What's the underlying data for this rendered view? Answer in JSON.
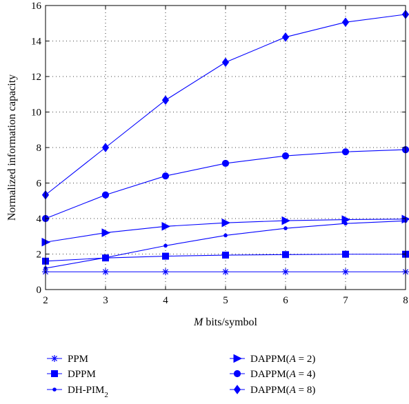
{
  "chart_data": {
    "type": "line",
    "title": "",
    "xlabel_italic": "M",
    "xlabel_rest": " bits/symbol",
    "ylabel": "Normalized information capacity",
    "xlim": [
      2,
      8
    ],
    "ylim": [
      0,
      16
    ],
    "xticks": [
      2,
      3,
      4,
      5,
      6,
      7,
      8
    ],
    "yticks": [
      0,
      2,
      4,
      6,
      8,
      10,
      12,
      14,
      16
    ],
    "grid": true,
    "grid_style": "dotted",
    "legend_position": "below plot, two columns",
    "line_color": "#0000ff",
    "x": [
      2,
      3,
      4,
      5,
      6,
      7,
      8
    ],
    "series": [
      {
        "name": "PPM",
        "name_parts": [
          {
            "t": "PPM"
          }
        ],
        "marker": "star",
        "values": [
          1,
          1,
          1,
          1,
          1,
          1,
          1
        ]
      },
      {
        "name": "DPPM",
        "name_parts": [
          {
            "t": "DPPM"
          }
        ],
        "marker": "square",
        "values": [
          1.6,
          1.78,
          1.88,
          1.94,
          1.97,
          1.99,
          1.99
        ]
      },
      {
        "name": "DH-PIM2",
        "name_parts": [
          {
            "t": "DH-PIM"
          },
          {
            "t": "2",
            "sub": true
          }
        ],
        "marker": "dot",
        "values": [
          1.2,
          1.8,
          2.47,
          3.05,
          3.45,
          3.72,
          3.87
        ]
      },
      {
        "name": "DAPPM(A = 2)",
        "name_parts": [
          {
            "t": "DAPPM("
          },
          {
            "t": "A",
            "italic": true
          },
          {
            "t": " = 2)"
          }
        ],
        "marker": "triangle-right",
        "values": [
          2.67,
          3.2,
          3.56,
          3.76,
          3.88,
          3.94,
          3.97
        ]
      },
      {
        "name": "DAPPM(A = 4)",
        "name_parts": [
          {
            "t": "DAPPM("
          },
          {
            "t": "A",
            "italic": true
          },
          {
            "t": " = 4)"
          }
        ],
        "marker": "circle",
        "values": [
          4.0,
          5.33,
          6.4,
          7.11,
          7.53,
          7.76,
          7.88
        ]
      },
      {
        "name": "DAPPM(A = 8)",
        "name_parts": [
          {
            "t": "DAPPM("
          },
          {
            "t": "A",
            "italic": true
          },
          {
            "t": " = 8)"
          }
        ],
        "marker": "diamond",
        "values": [
          5.33,
          8.0,
          10.67,
          12.8,
          14.22,
          15.06,
          15.5
        ]
      }
    ]
  }
}
